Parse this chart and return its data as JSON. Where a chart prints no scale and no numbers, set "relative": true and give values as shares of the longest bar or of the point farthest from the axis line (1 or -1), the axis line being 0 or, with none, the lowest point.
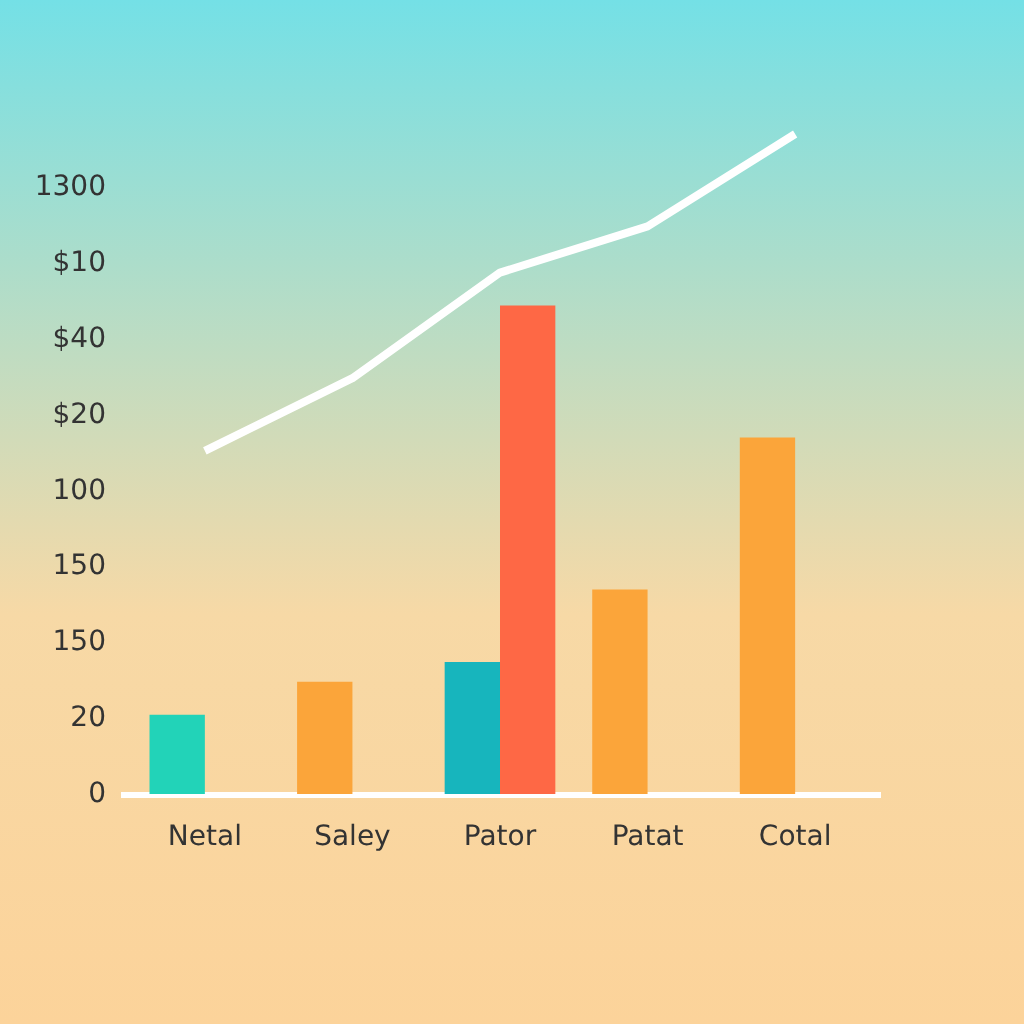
{
  "chart_data": {
    "type": "bar",
    "relative": true,
    "categories": [
      "Netal",
      "Saley",
      "Pator",
      "Patat",
      "Cotal"
    ],
    "series": [
      {
        "colors": [
          "#22d3b8",
          "#fba53a",
          "#17b5bd",
          "#fba53a",
          "#fba53a"
        ],
        "values": [
          0.12,
          0.17,
          0.2,
          0.31,
          0.54
        ]
      },
      {
        "color": "#fe6845",
        "values": [
          null,
          null,
          0.74,
          null,
          null
        ]
      },
      {
        "type": "line",
        "color": "#ffffff",
        "values": [
          0.52,
          0.63,
          0.79,
          0.86,
          1
        ]
      }
    ],
    "annotations": [
      "1300",
      "$10",
      "$40",
      "$20",
      "100",
      "150",
      "150",
      "20",
      "0"
    ],
    "marker": "none",
    "line_style": "solid"
  }
}
